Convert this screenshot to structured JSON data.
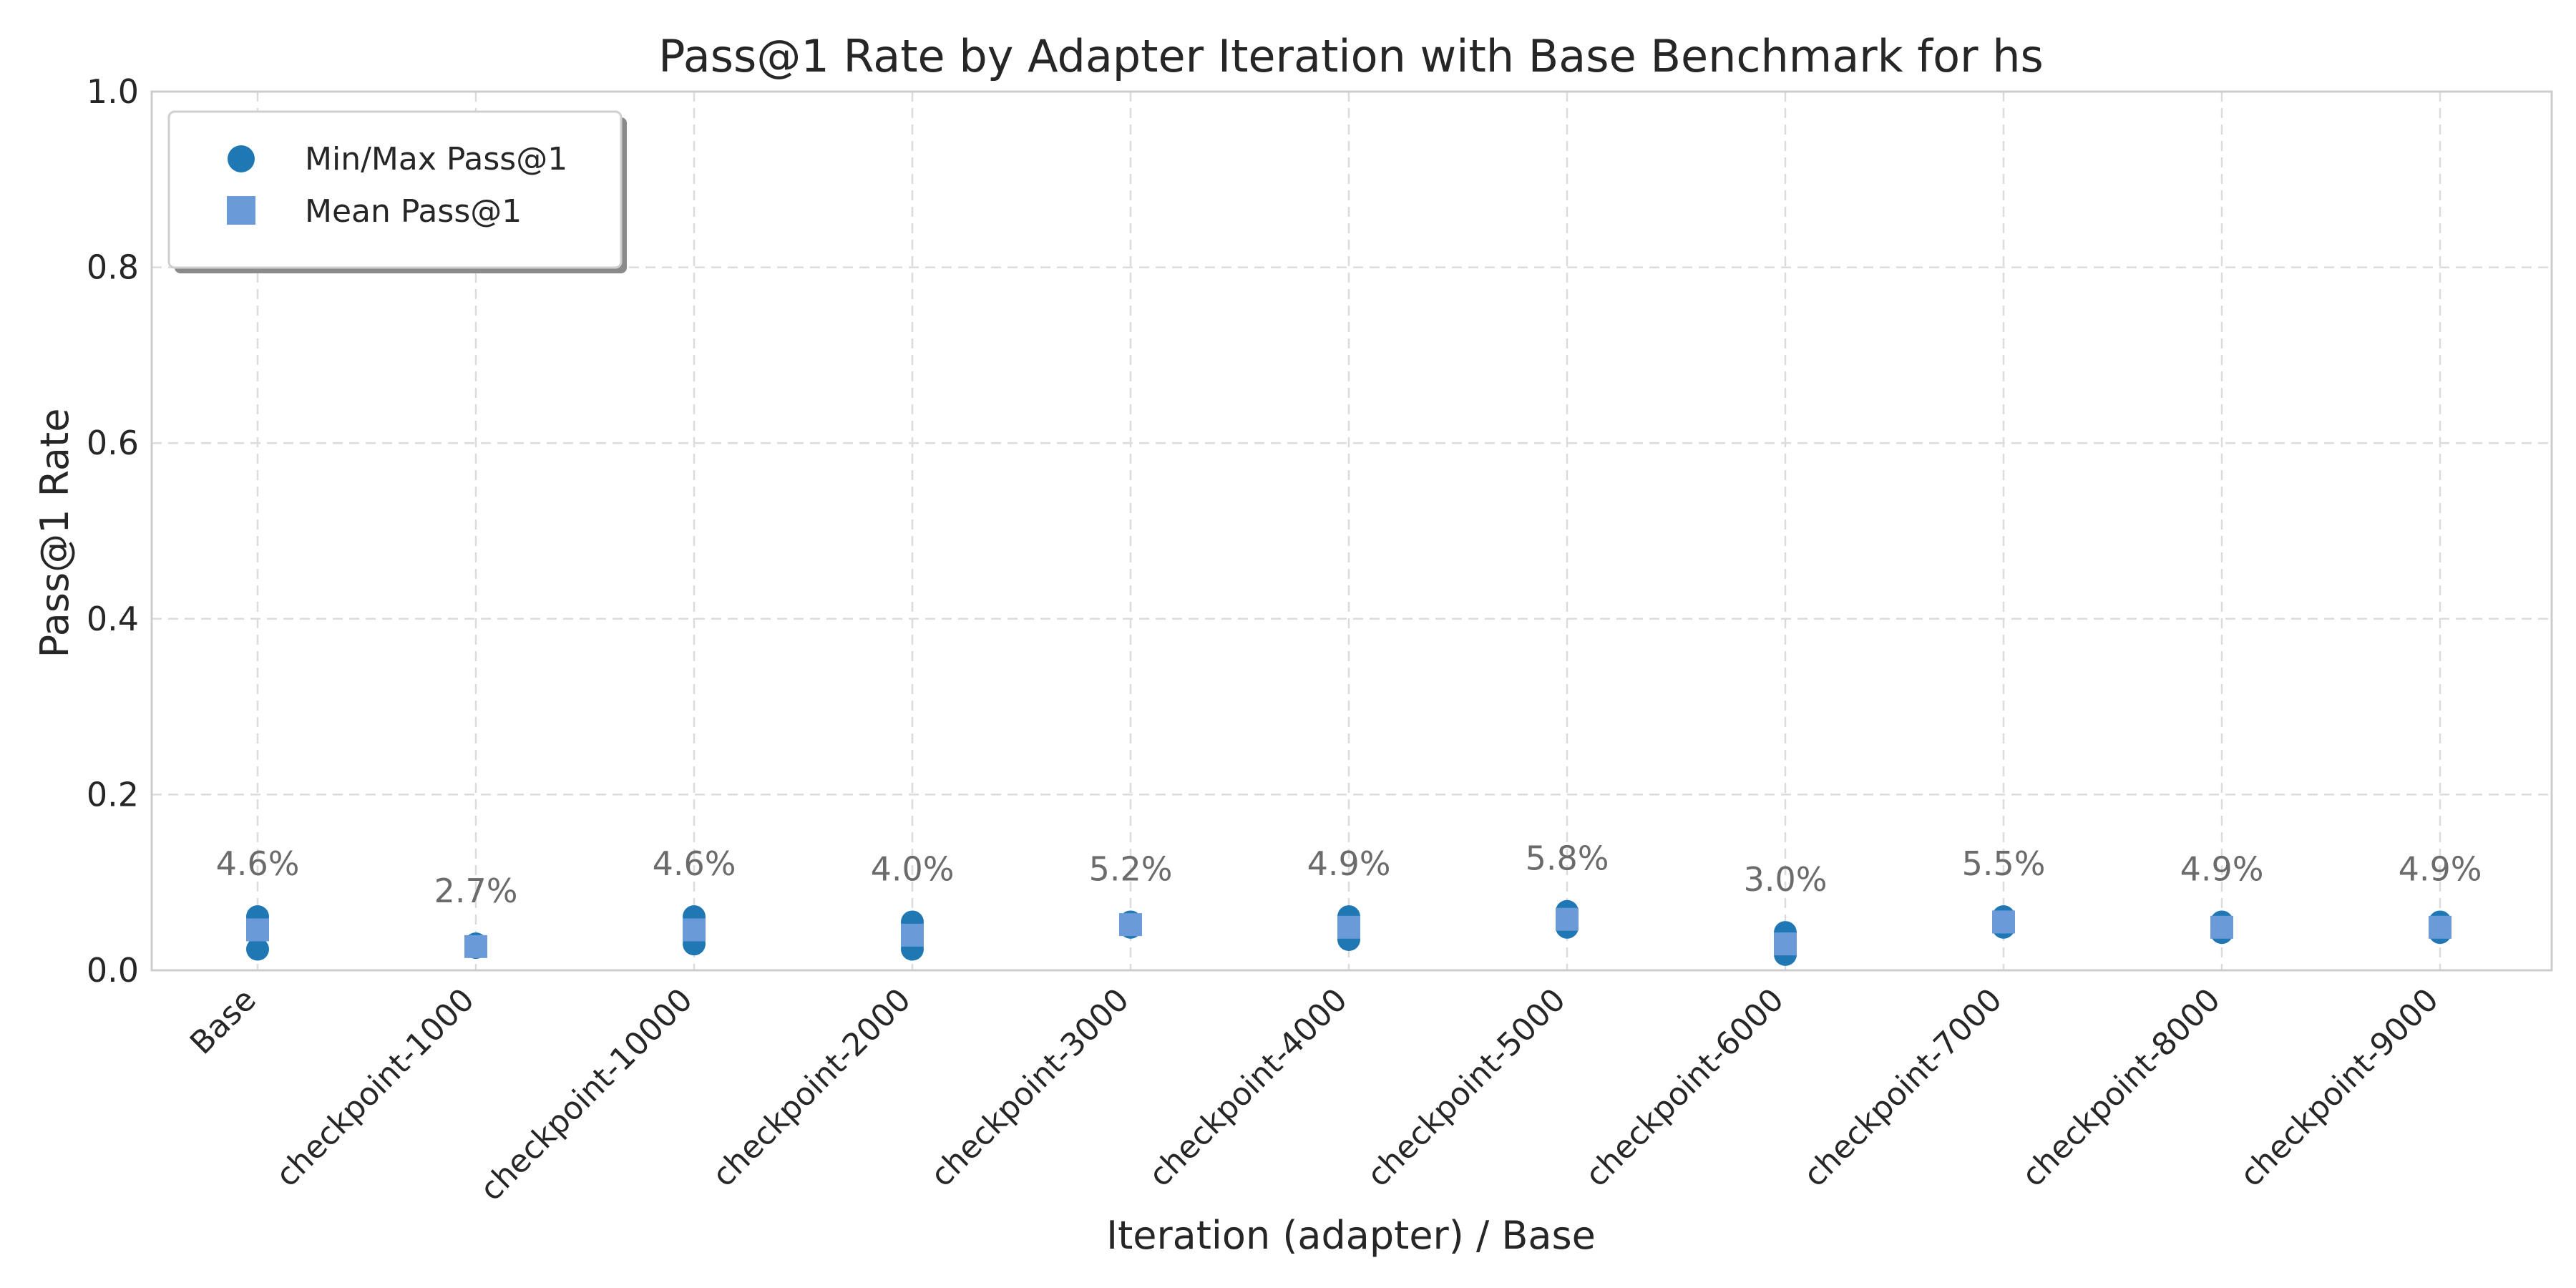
{
  "chart_data": {
    "type": "scatter",
    "title": "Pass@1 Rate by Adapter Iteration with Base Benchmark for hs",
    "xlabel": "Iteration (adapter) / Base",
    "ylabel": "Pass@1 Rate",
    "ylim": [
      0.0,
      1.0
    ],
    "yticks": [
      "0.0",
      "0.2",
      "0.4",
      "0.6",
      "0.8",
      "1.0"
    ],
    "grid": true,
    "legend_position": "top-left",
    "categories": [
      "Base",
      "checkpoint-1000",
      "checkpoint-10000",
      "checkpoint-2000",
      "checkpoint-3000",
      "checkpoint-4000",
      "checkpoint-5000",
      "checkpoint-6000",
      "checkpoint-7000",
      "checkpoint-8000",
      "checkpoint-9000"
    ],
    "series": [
      {
        "name": "Min/Max Pass@1",
        "marker": "circle",
        "color": "#1f77b4",
        "min": [
          0.024,
          0.026,
          0.03,
          0.024,
          0.049,
          0.035,
          0.049,
          0.018,
          0.049,
          0.043,
          0.043
        ],
        "max": [
          0.061,
          0.03,
          0.061,
          0.055,
          0.055,
          0.061,
          0.067,
          0.043,
          0.061,
          0.055,
          0.055
        ]
      },
      {
        "name": "Mean Pass@1",
        "marker": "square",
        "color": "#6a9bd8",
        "values": [
          0.046,
          0.027,
          0.046,
          0.04,
          0.052,
          0.049,
          0.058,
          0.03,
          0.055,
          0.049,
          0.049
        ]
      }
    ],
    "data_labels": [
      "4.6%",
      "2.7%",
      "4.6%",
      "4.0%",
      "5.2%",
      "4.9%",
      "5.8%",
      "3.0%",
      "5.5%",
      "4.9%",
      "4.9%"
    ]
  }
}
